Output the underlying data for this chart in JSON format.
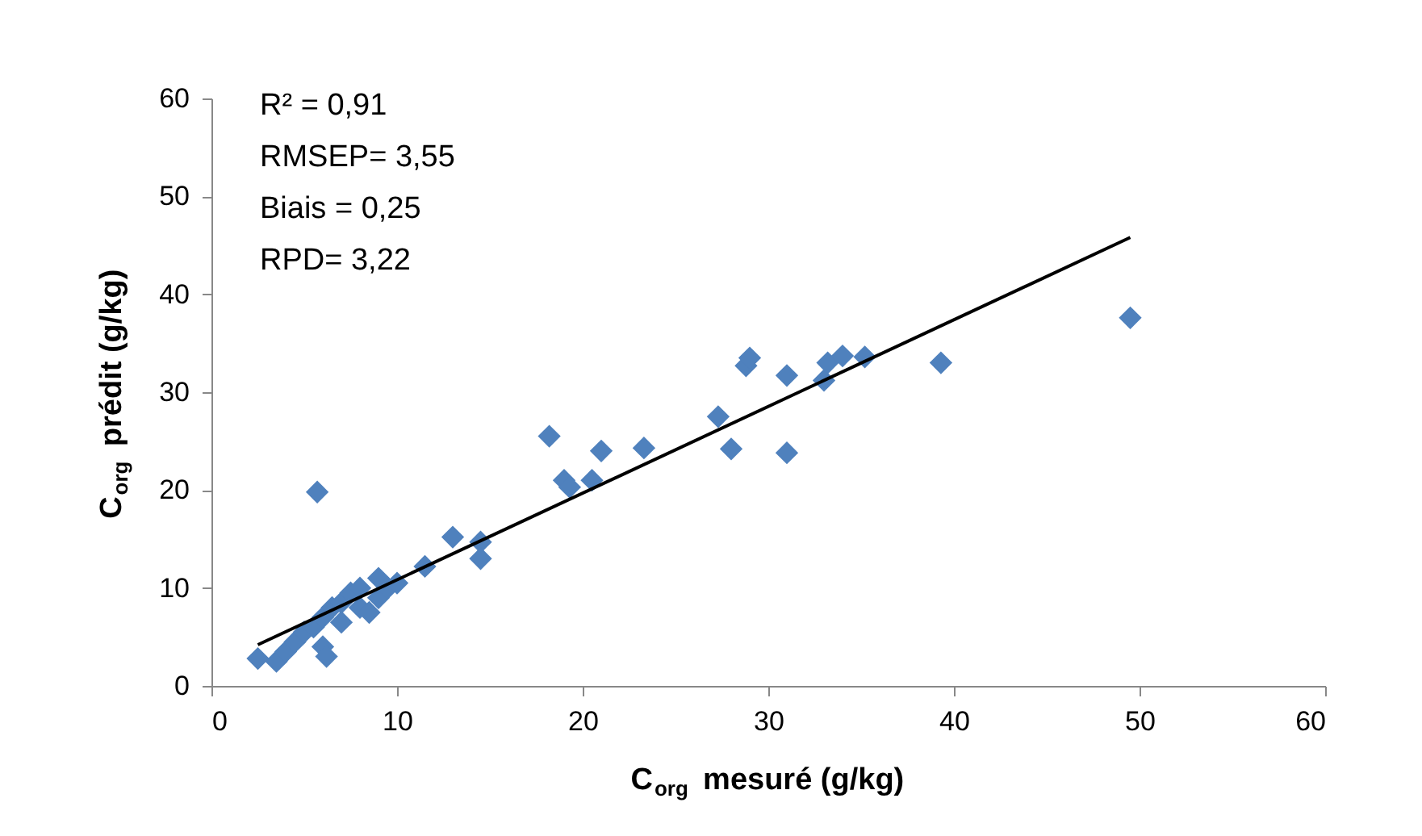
{
  "chart_data": {
    "type": "scatter",
    "xlabel": "C$_{org}$ mesuré (g/kg)",
    "ylabel": "C$_{org}$ prédit (g/kg)",
    "annotations": [
      "R² = 0,91",
      "RMSEP= 3,55",
      "Biais = 0,25",
      "RPD= 3,22"
    ],
    "xlim": [
      0,
      60
    ],
    "xticks": [
      0,
      10,
      20,
      30,
      40,
      50,
      60
    ],
    "ylim": [
      0,
      60
    ],
    "yticks": [
      0,
      10,
      20,
      30,
      40,
      50,
      60
    ],
    "grid": false,
    "legend": false,
    "marker": "diamond",
    "series": [
      {
        "color": "#4f81bd",
        "x": [
          2.5,
          3.5,
          4,
          4.5,
          5,
          5.5,
          6,
          6,
          6.2,
          6.5,
          7,
          7,
          7.5,
          8,
          8,
          8.5,
          9,
          9,
          9.5,
          10,
          5.7,
          11.5,
          13,
          14.5,
          14.5,
          18.2,
          19,
          19.3,
          20.5,
          21,
          23.3,
          27.3,
          28,
          28.8,
          29,
          31,
          31,
          33,
          33.2,
          34,
          35.2,
          39.3,
          49.5
        ],
        "values": [
          2.8,
          2.5,
          3.5,
          4.5,
          5.5,
          6,
          7,
          4,
          3,
          8,
          6.5,
          8.5,
          9.5,
          10,
          8,
          7.5,
          9,
          11,
          10,
          10.5,
          19.8,
          12.2,
          15.2,
          14.7,
          13,
          25.5,
          21,
          20.3,
          21,
          24,
          24.3,
          27.5,
          24.2,
          32.7,
          33.5,
          31.7,
          23.8,
          31.2,
          33,
          33.7,
          33.6,
          33,
          37.6
        ]
      },
      {
        "type": "line",
        "marker": "none",
        "color": "#000000",
        "x": [
          2.5,
          49.5
        ],
        "values": [
          4.2,
          45.8
        ]
      }
    ]
  }
}
